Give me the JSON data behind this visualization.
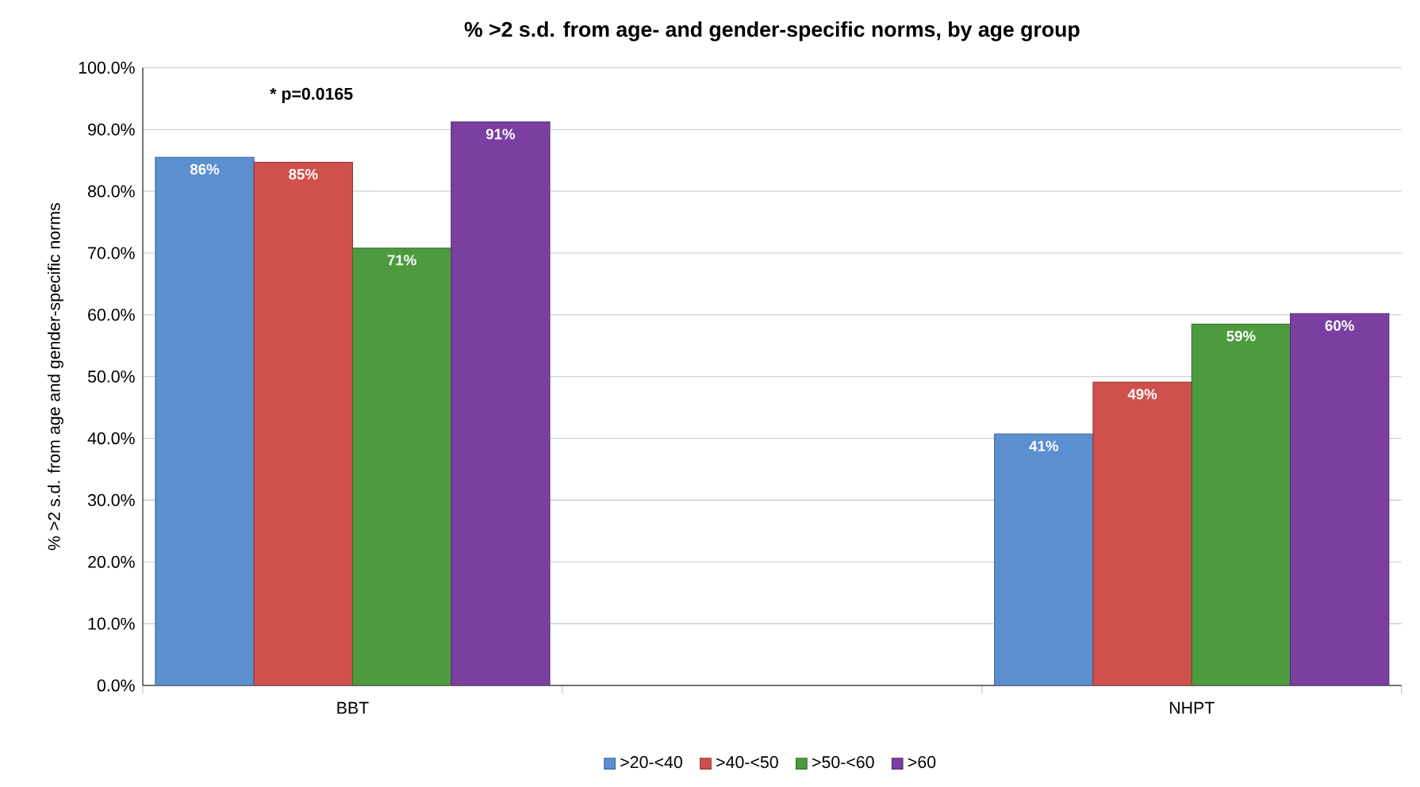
{
  "chart_data": {
    "type": "bar",
    "title": "% >2 s.d. from age- and gender-specific norms, by age group",
    "ylabel": "% >2 s.d. from age and gender-specific norms",
    "categories": [
      "BBT",
      null,
      "NHPT"
    ],
    "series": [
      {
        "name": ">20-<40",
        "color": "#5b8fd0",
        "values": [
          85.5,
          null,
          40.7
        ],
        "value_labels": [
          "86%",
          null,
          "41%"
        ]
      },
      {
        "name": ">40-<50",
        "color": "#d0504d",
        "values": [
          84.7,
          null,
          49.1
        ],
        "value_labels": [
          "85%",
          null,
          "49%"
        ]
      },
      {
        "name": ">50-<60",
        "color": "#4e9a3f",
        "values": [
          70.8,
          null,
          58.5
        ],
        "value_labels": [
          "71%",
          null,
          "59%"
        ]
      },
      {
        "name": ">60",
        "color": "#7a3fa0",
        "values": [
          91.2,
          null,
          60.2
        ],
        "value_labels": [
          "91%",
          null,
          "60%"
        ]
      }
    ],
    "ylim": [
      0,
      100
    ],
    "yticks": [
      {
        "value": 0,
        "label": "0.0%"
      },
      {
        "value": 10,
        "label": "10.0%"
      },
      {
        "value": 20,
        "label": "20.0%"
      },
      {
        "value": 30,
        "label": "30.0%"
      },
      {
        "value": 40,
        "label": "40.0%"
      },
      {
        "value": 50,
        "label": "50.0%"
      },
      {
        "value": 60,
        "label": "60.0%"
      },
      {
        "value": 70,
        "label": "70.0%"
      },
      {
        "value": 80,
        "label": "80.0%"
      },
      {
        "value": 90,
        "label": "90.0%"
      },
      {
        "value": 100,
        "label": "100.0%"
      }
    ],
    "annotations": [
      "* p=0.0165"
    ],
    "grid": "y",
    "legend": "bottom"
  }
}
